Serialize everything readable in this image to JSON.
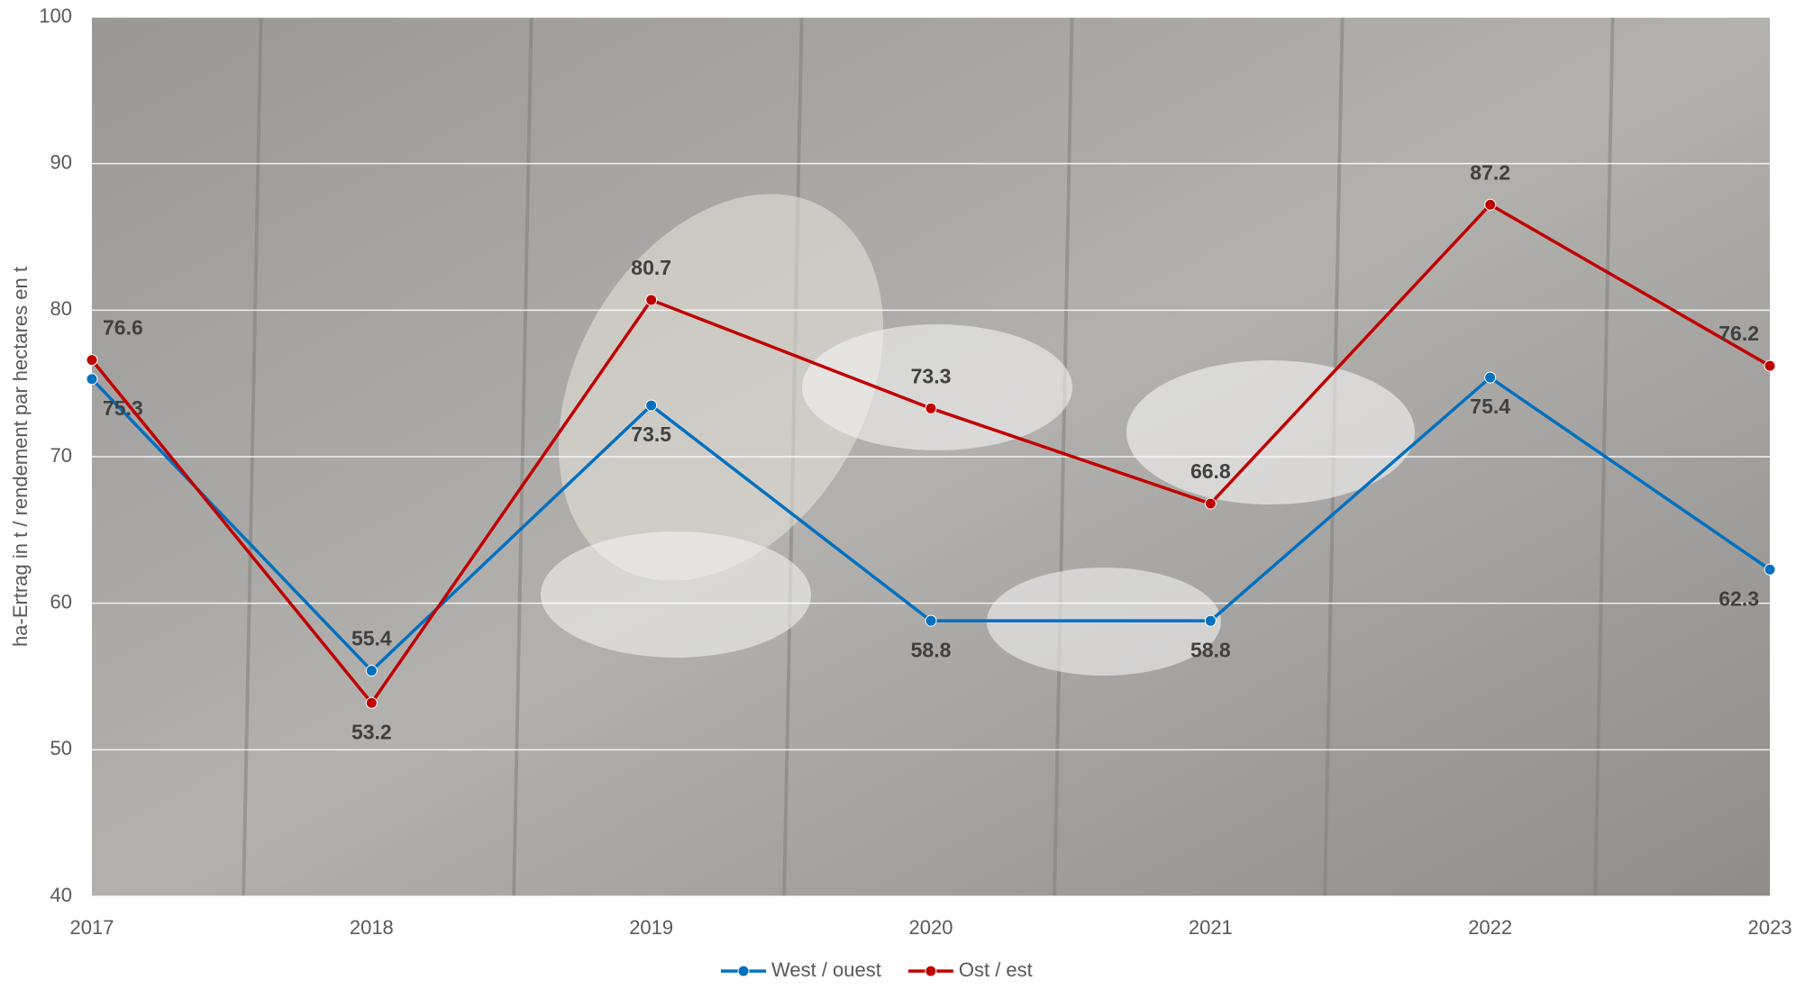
{
  "chart_data": {
    "type": "line",
    "y_label": "ha-Ertrag in t / rendement par hectares en t",
    "categories": [
      "2017",
      "2018",
      "2019",
      "2020",
      "2021",
      "2022",
      "2023"
    ],
    "series": [
      {
        "name": "West / ouest",
        "color": "#0070c0",
        "values": [
          75.3,
          55.4,
          73.5,
          58.8,
          58.8,
          75.4,
          62.3
        ]
      },
      {
        "name": "Ost / est",
        "color": "#c00000",
        "values": [
          76.6,
          53.2,
          80.7,
          73.3,
          66.8,
          87.2,
          76.2
        ]
      }
    ],
    "ylim": [
      40,
      100
    ],
    "yticks": [
      40,
      50,
      60,
      70,
      80,
      90,
      100
    ],
    "grid": true,
    "legend": "bottom"
  }
}
